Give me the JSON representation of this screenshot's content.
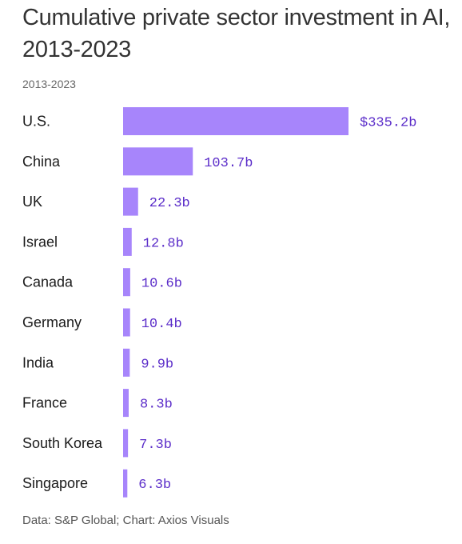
{
  "chart_data": {
    "type": "bar",
    "orientation": "horizontal",
    "title": "Cumulative private sector investment in AI, 2013-2023",
    "subtitle": "2013-2023",
    "categories": [
      "U.S.",
      "China",
      "UK",
      "Israel",
      "Canada",
      "Germany",
      "India",
      "France",
      "South Korea",
      "Singapore"
    ],
    "values": [
      335.2,
      103.7,
      22.3,
      12.8,
      10.6,
      10.4,
      9.9,
      8.3,
      7.3,
      6.3
    ],
    "value_labels": [
      "$335.2b",
      "103.7b",
      "22.3b",
      "12.8b",
      "10.6b",
      "10.4b",
      "9.9b",
      "8.3b",
      "7.3b",
      "6.3b"
    ],
    "xlim": [
      0,
      335.2
    ],
    "grid": false,
    "bar_color": "#a785fb",
    "value_label_color": "#5b2dc9"
  },
  "source": "Data: S&P Global; Chart: Axios Visuals"
}
